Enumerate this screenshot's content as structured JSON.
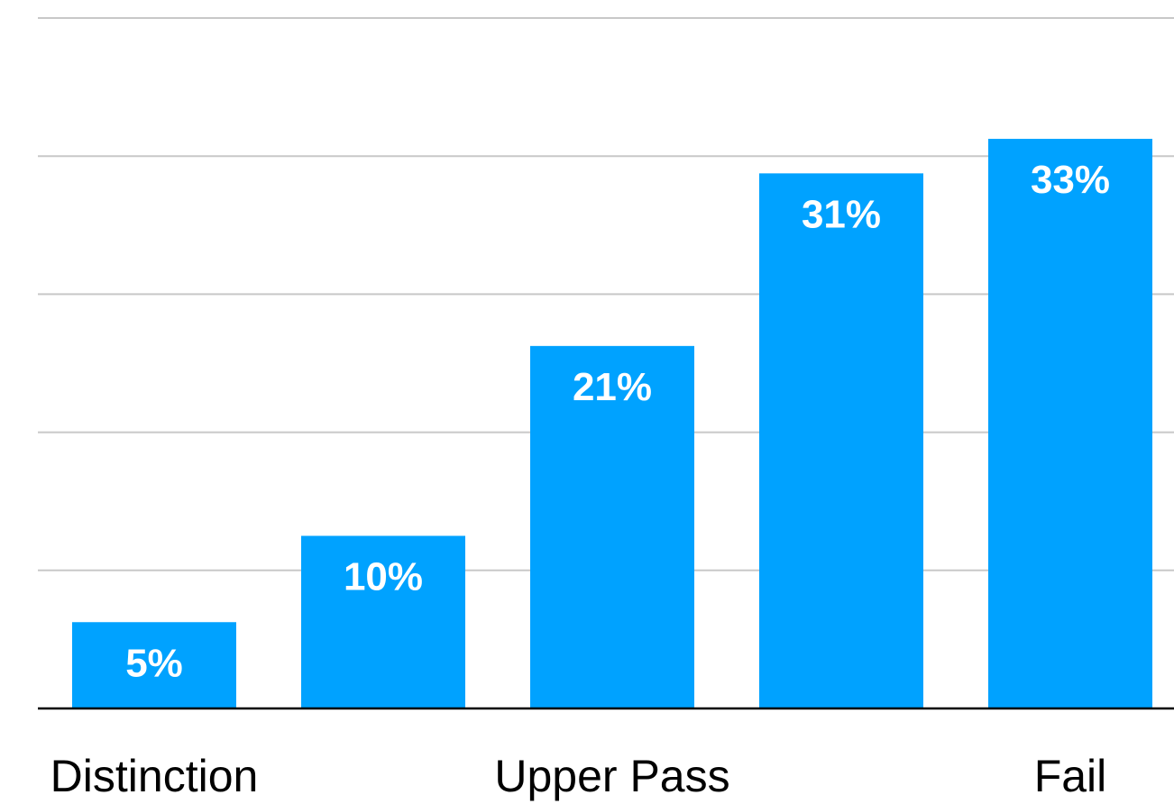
{
  "chart_data": {
    "type": "bar",
    "categories": [
      "Distinction",
      "",
      "Upper Pass",
      "",
      "Fail"
    ],
    "tick_labels": [
      "Distinction",
      "Upper Pass",
      "Fail"
    ],
    "values": [
      5,
      10,
      21,
      31,
      33
    ],
    "data_labels": [
      "5%",
      "10%",
      "21%",
      "31%",
      "33%"
    ],
    "unit": "%",
    "ylim": [
      0,
      40
    ],
    "grid": true,
    "legend": "none",
    "bar_color": "#00a2ff"
  }
}
